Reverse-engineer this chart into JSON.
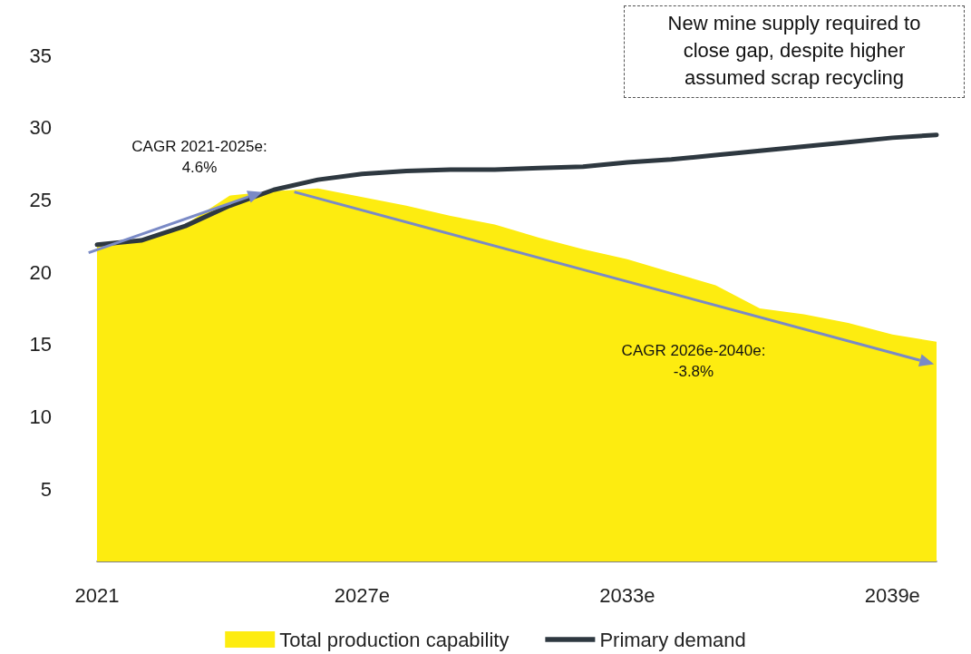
{
  "chart_data": {
    "type": "area",
    "categories": [
      "2021",
      null,
      null,
      null,
      null,
      null,
      "2027e",
      null,
      null,
      null,
      null,
      null,
      "2033e",
      null,
      null,
      null,
      null,
      null,
      "2039e",
      null
    ],
    "series": [
      {
        "name": "Total production capability",
        "type": "area",
        "color": "#fdec10",
        "values": [
          21.8,
          22.2,
          23.3,
          25.3,
          25.6,
          25.8,
          25.2,
          24.6,
          23.9,
          23.3,
          22.4,
          21.6,
          20.9,
          20.0,
          19.1,
          17.5,
          17.1,
          16.5,
          15.7,
          15.2
        ]
      },
      {
        "name": "Primary demand",
        "type": "line",
        "color": "#2e3840",
        "values": [
          21.9,
          22.2,
          23.2,
          24.6,
          25.7,
          26.4,
          26.8,
          27.0,
          27.1,
          27.1,
          27.2,
          27.3,
          27.6,
          27.8,
          28.1,
          28.4,
          28.7,
          29.0,
          29.3,
          29.5
        ]
      }
    ],
    "ylim": [
      0,
      35
    ],
    "yticks": [
      5,
      10,
      15,
      20,
      25,
      30,
      35
    ],
    "grid": false,
    "legend": "bottom",
    "marker": "none",
    "annotations": [
      "CAGR 2021-2025e:\n4.6%",
      "CAGR 2026e-2040e:\n-3.8%",
      "New mine supply required to\nclose gap, despite higher\nassumed scrap recycling"
    ]
  }
}
